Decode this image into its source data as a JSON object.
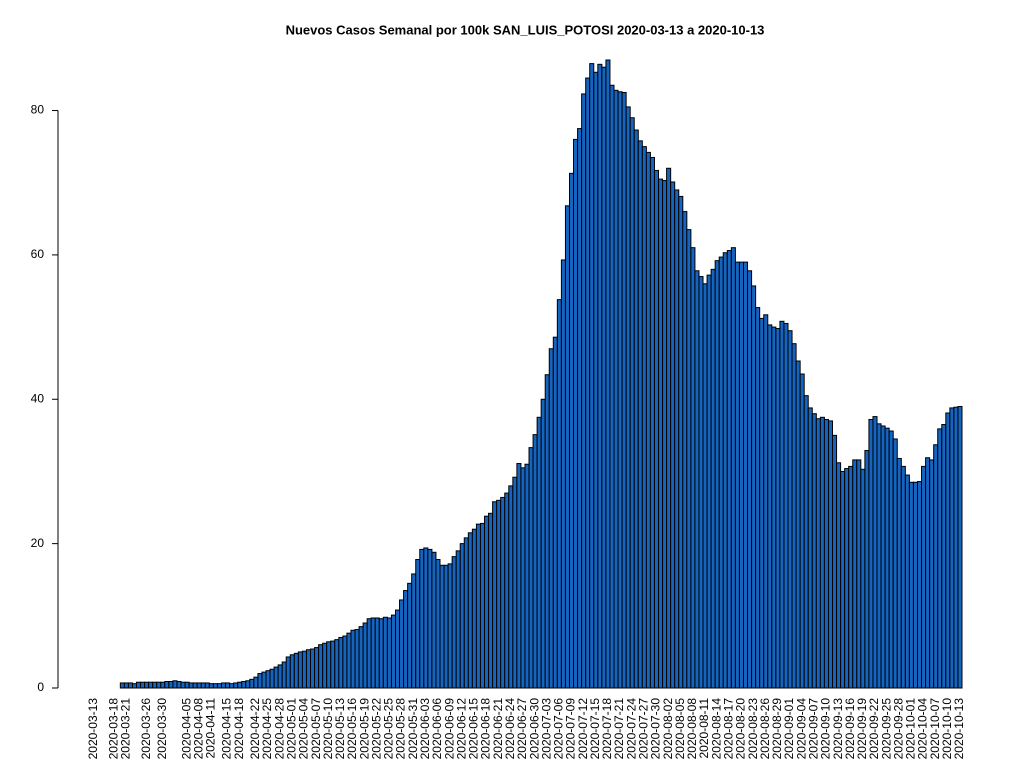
{
  "chart_data": {
    "type": "bar",
    "title": "Nuevos Casos Semanal por 100k SAN_LUIS_POTOSI 2020-03-13 a 2020-10-13",
    "color": "#1565c0",
    "ylim": [
      0,
      87
    ],
    "yticks": [
      0,
      20,
      40,
      60,
      80
    ],
    "categories": [
      "2020-03-13",
      null,
      null,
      null,
      null,
      "2020-03-18",
      null,
      null,
      "2020-03-21",
      null,
      null,
      null,
      null,
      "2020-03-26",
      null,
      null,
      null,
      "2020-03-30",
      null,
      null,
      null,
      null,
      null,
      "2020-04-05",
      null,
      null,
      "2020-04-08",
      null,
      null,
      "2020-04-11",
      null,
      null,
      null,
      "2020-04-15",
      null,
      null,
      "2020-04-18",
      null,
      null,
      null,
      "2020-04-22",
      null,
      null,
      "2020-04-25",
      null,
      null,
      "2020-04-28",
      null,
      null,
      "2020-05-01",
      null,
      null,
      "2020-05-04",
      null,
      null,
      "2020-05-07",
      null,
      null,
      "2020-05-10",
      null,
      null,
      "2020-05-13",
      null,
      null,
      "2020-05-16",
      null,
      null,
      "2020-05-19",
      null,
      null,
      "2020-05-22",
      null,
      null,
      "2020-05-25",
      null,
      null,
      "2020-05-28",
      null,
      null,
      "2020-05-31",
      null,
      null,
      "2020-06-03",
      null,
      null,
      "2020-06-06",
      null,
      null,
      "2020-06-09",
      null,
      null,
      "2020-06-12",
      null,
      null,
      "2020-06-15",
      null,
      null,
      "2020-06-18",
      null,
      null,
      "2020-06-21",
      null,
      null,
      "2020-06-24",
      null,
      null,
      "2020-06-27",
      null,
      null,
      "2020-06-30",
      null,
      null,
      "2020-07-03",
      null,
      null,
      "2020-07-06",
      null,
      null,
      "2020-07-09",
      null,
      null,
      "2020-07-12",
      null,
      null,
      "2020-07-15",
      null,
      null,
      "2020-07-18",
      null,
      null,
      "2020-07-21",
      null,
      null,
      "2020-07-24",
      null,
      null,
      "2020-07-27",
      null,
      null,
      "2020-07-30",
      null,
      null,
      "2020-08-02",
      null,
      null,
      "2020-08-05",
      null,
      null,
      "2020-08-08",
      null,
      null,
      "2020-08-11",
      null,
      null,
      "2020-08-14",
      null,
      null,
      "2020-08-17",
      null,
      null,
      "2020-08-20",
      null,
      null,
      "2020-08-23",
      null,
      null,
      "2020-08-26",
      null,
      null,
      "2020-08-29",
      null,
      null,
      "2020-09-01",
      null,
      null,
      "2020-09-04",
      null,
      null,
      "2020-09-07",
      null,
      null,
      "2020-09-10",
      null,
      null,
      "2020-09-13",
      null,
      null,
      "2020-09-16",
      null,
      null,
      "2020-09-19",
      null,
      null,
      "2020-09-22",
      null,
      null,
      "2020-09-25",
      null,
      null,
      "2020-09-28",
      null,
      null,
      "2020-10-01",
      null,
      null,
      "2020-10-04",
      null,
      null,
      "2020-10-07",
      null,
      null,
      "2020-10-10",
      null,
      null,
      "2020-10-13"
    ],
    "values": [
      0,
      0,
      0,
      0,
      0,
      0,
      0,
      0.7,
      0.7,
      0.7,
      0.6,
      0.8,
      0.8,
      0.8,
      0.8,
      0.8,
      0.8,
      0.8,
      0.9,
      0.9,
      1.0,
      0.9,
      0.8,
      0.8,
      0.7,
      0.7,
      0.7,
      0.7,
      0.7,
      0.6,
      0.6,
      0.6,
      0.7,
      0.7,
      0.6,
      0.7,
      0.8,
      0.9,
      1.0,
      1.2,
      1.5,
      2.0,
      2.2,
      2.4,
      2.6,
      2.9,
      3.2,
      3.6,
      4.3,
      4.6,
      4.8,
      5.0,
      5.1,
      5.3,
      5.4,
      5.6,
      6.0,
      6.2,
      6.4,
      6.5,
      6.7,
      7.0,
      7.2,
      7.6,
      8.0,
      8.1,
      8.5,
      9.0,
      9.6,
      9.7,
      9.7,
      9.6,
      9.8,
      9.7,
      10.1,
      10.8,
      12.2,
      13.5,
      14.5,
      15.8,
      17.8,
      19.2,
      19.4,
      19.2,
      18.8,
      17.8,
      17.0,
      17.0,
      17.2,
      18.2,
      19.0,
      20.0,
      20.8,
      21.5,
      22.0,
      22.7,
      22.8,
      23.8,
      24.2,
      25.8,
      26.0,
      26.4,
      27.0,
      28.0,
      29.2,
      31.1,
      30.5,
      31.0,
      33.3,
      35.1,
      37.5,
      40.0,
      43.4,
      47.0,
      48.6,
      53.8,
      59.3,
      66.8,
      71.3,
      76.0,
      77.5,
      82.3,
      84.5,
      86.5,
      85.3,
      86.4,
      86.0,
      87.0,
      83.5,
      82.8,
      82.6,
      82.5,
      80.5,
      79.0,
      77.3,
      75.8,
      75.0,
      74.2,
      73.5,
      71.7,
      70.5,
      70.3,
      72.0,
      70.1,
      69.0,
      68.1,
      66.0,
      63.5,
      61.0,
      57.8,
      57.0,
      56.0,
      57.2,
      58.0,
      59.2,
      59.7,
      60.3,
      60.6,
      61.0,
      59.0,
      59.0,
      59.0,
      57.8,
      55.7,
      52.7,
      51.2,
      51.7,
      50.3,
      50.0,
      49.8,
      50.8,
      50.5,
      49.5,
      47.7,
      45.3,
      43.5,
      40.5,
      38.8,
      38.0,
      37.3,
      37.5,
      37.2,
      37.0,
      35.0,
      31.2,
      30.0,
      30.4,
      30.7,
      31.6,
      31.6,
      30.3,
      32.9,
      37.2,
      37.6,
      36.6,
      36.3,
      36.0,
      35.6,
      34.5,
      31.8,
      30.7,
      29.5,
      28.5,
      28.5,
      28.6,
      30.7,
      31.9,
      31.6,
      33.7,
      35.9,
      36.5,
      38.1,
      38.8,
      38.9,
      39.0
    ]
  }
}
